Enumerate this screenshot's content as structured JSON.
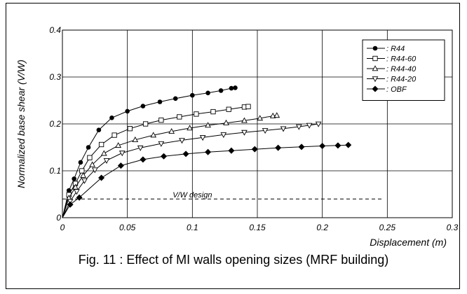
{
  "caption": "Fig. 11 : Effect of MI walls opening sizes (MRF building)",
  "chart_data": {
    "type": "line",
    "title": "",
    "xlabel": "Displacement (m)",
    "ylabel": "Normalized base shear (V/W)",
    "xlim": [
      0,
      0.3
    ],
    "ylim": [
      0,
      0.4
    ],
    "xticks": [
      "0",
      "0.05",
      "0.1",
      "0.15",
      "0.2",
      "0.25",
      "0.3"
    ],
    "yticks": [
      "0",
      "0.1",
      "0.2",
      "0.3",
      "0.4"
    ],
    "grid": true,
    "legend_position": "top-right",
    "series": [
      {
        "name": ": R44",
        "marker": "filled-circle",
        "x": [
          0,
          0.005,
          0.009,
          0.014,
          0.02,
          0.028,
          0.038,
          0.05,
          0.062,
          0.075,
          0.087,
          0.1,
          0.112,
          0.122,
          0.13,
          0.133
        ],
        "y": [
          0,
          0.058,
          0.083,
          0.118,
          0.15,
          0.187,
          0.213,
          0.227,
          0.238,
          0.247,
          0.254,
          0.261,
          0.266,
          0.271,
          0.276,
          0.277
        ]
      },
      {
        "name": ": R44-60",
        "marker": "open-square",
        "x": [
          0,
          0.005,
          0.01,
          0.015,
          0.021,
          0.03,
          0.04,
          0.052,
          0.064,
          0.076,
          0.09,
          0.103,
          0.116,
          0.128,
          0.14,
          0.143
        ],
        "y": [
          0,
          0.049,
          0.073,
          0.1,
          0.128,
          0.156,
          0.176,
          0.19,
          0.2,
          0.208,
          0.215,
          0.221,
          0.226,
          0.231,
          0.236,
          0.237
        ]
      },
      {
        "name": ": R44-40",
        "marker": "open-triangle-up",
        "x": [
          0,
          0.005,
          0.01,
          0.016,
          0.023,
          0.032,
          0.043,
          0.056,
          0.07,
          0.084,
          0.098,
          0.112,
          0.126,
          0.14,
          0.152,
          0.162,
          0.165
        ],
        "y": [
          0,
          0.042,
          0.065,
          0.09,
          0.113,
          0.137,
          0.154,
          0.166,
          0.176,
          0.184,
          0.191,
          0.197,
          0.202,
          0.207,
          0.212,
          0.217,
          0.218
        ]
      },
      {
        "name": ": R44-20",
        "marker": "open-triangle-down",
        "x": [
          0,
          0.006,
          0.011,
          0.017,
          0.025,
          0.034,
          0.046,
          0.06,
          0.076,
          0.092,
          0.108,
          0.124,
          0.14,
          0.156,
          0.17,
          0.182,
          0.19,
          0.197
        ],
        "y": [
          0,
          0.035,
          0.056,
          0.079,
          0.102,
          0.122,
          0.138,
          0.149,
          0.158,
          0.165,
          0.171,
          0.177,
          0.182,
          0.186,
          0.19,
          0.194,
          0.197,
          0.2
        ]
      },
      {
        "name": ": OBF",
        "marker": "filled-diamond",
        "x": [
          0,
          0.006,
          0.013,
          0.03,
          0.045,
          0.062,
          0.078,
          0.095,
          0.112,
          0.13,
          0.148,
          0.166,
          0.184,
          0.2,
          0.212,
          0.22
        ],
        "y": [
          0,
          0.028,
          0.043,
          0.085,
          0.111,
          0.124,
          0.131,
          0.136,
          0.14,
          0.143,
          0.146,
          0.149,
          0.151,
          0.153,
          0.154,
          0.155
        ]
      }
    ],
    "reference_line": {
      "label": "V/W design",
      "y": 0.04,
      "x_start": 0,
      "x_end": 0.247,
      "style": "dashed"
    }
  }
}
